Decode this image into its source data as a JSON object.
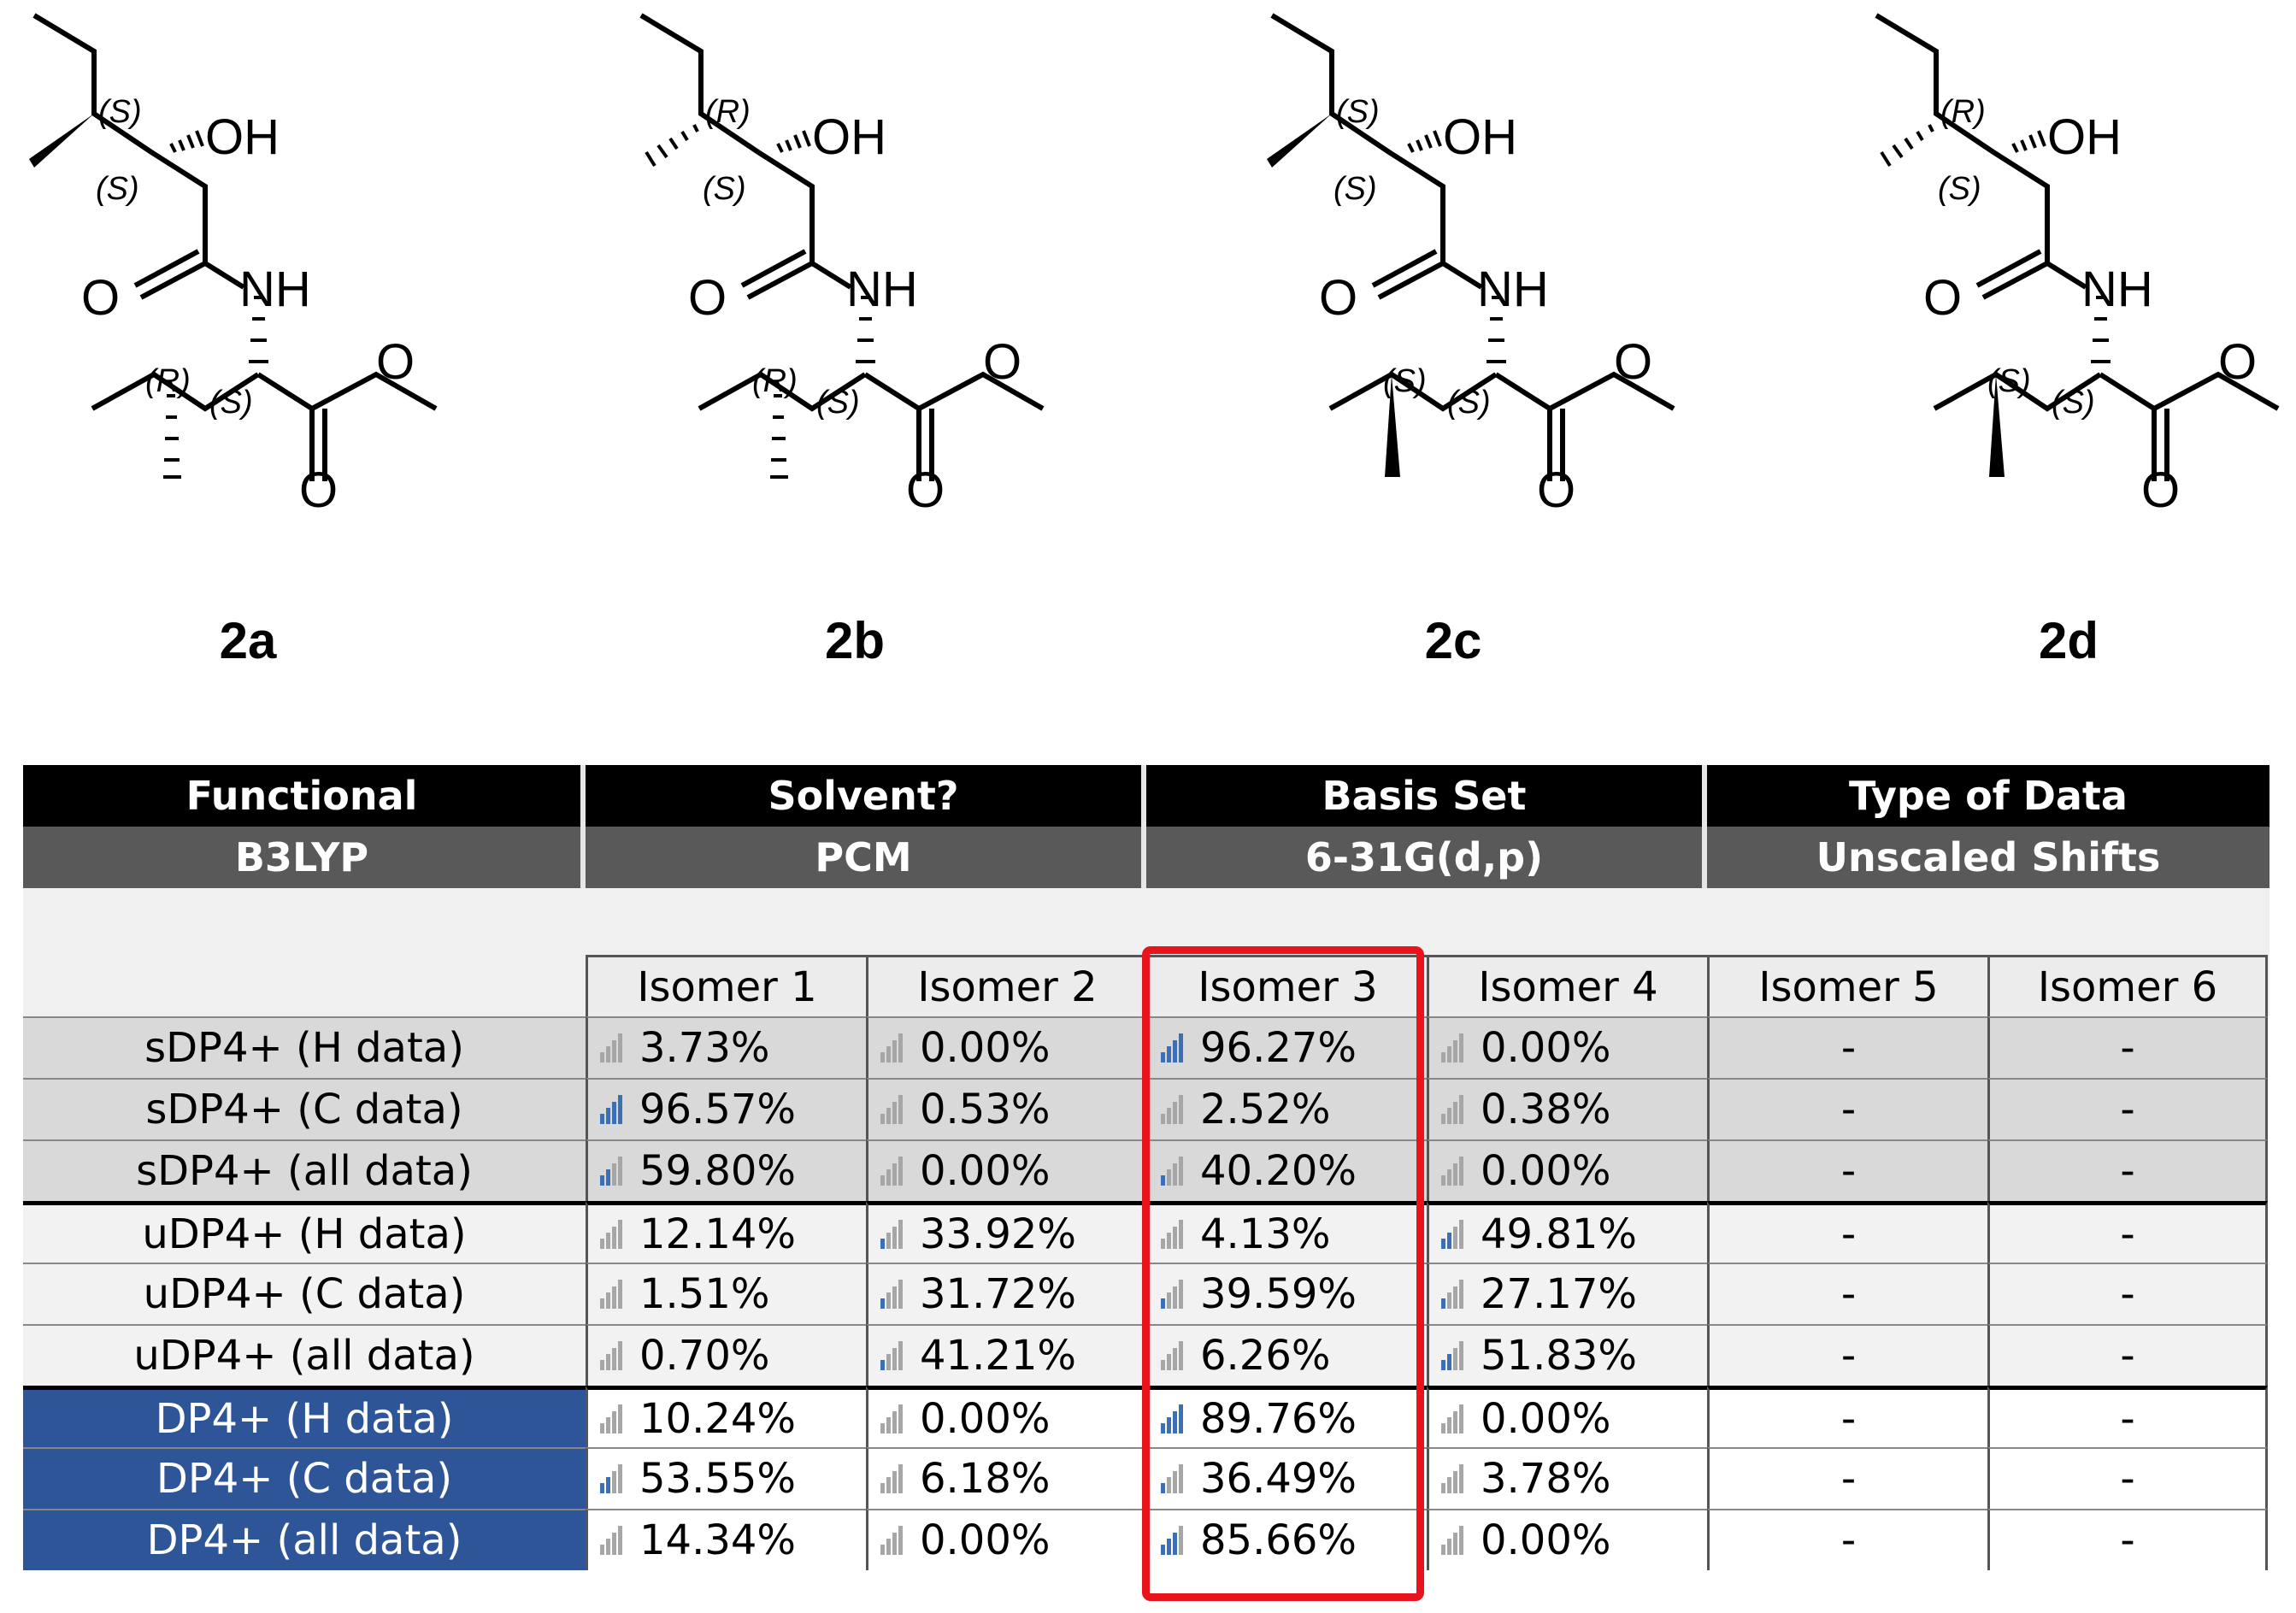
{
  "compounds": [
    {
      "label": "2a",
      "top_configs": [
        "(S)",
        "(S)"
      ],
      "bottom_configs": [
        "(R)",
        "(S)"
      ]
    },
    {
      "label": "2b",
      "top_configs": [
        "(R)",
        "(S)"
      ],
      "bottom_configs": [
        "(R)",
        "(S)"
      ]
    },
    {
      "label": "2c",
      "top_configs": [
        "(S)",
        "(S)"
      ],
      "bottom_configs": [
        "(S)",
        "(S)"
      ]
    },
    {
      "label": "2d",
      "top_configs": [
        "(R)",
        "(S)"
      ],
      "bottom_configs": [
        "(S)",
        "(S)"
      ]
    }
  ],
  "atoms": {
    "oh": "OH",
    "nh": "NH",
    "o": "O"
  },
  "settings": {
    "headers": [
      "Functional",
      "Solvent?",
      "Basis Set",
      "Type of Data"
    ],
    "values": [
      "B3LYP",
      "PCM",
      "6-31G(d,p)",
      "Unscaled Shifts"
    ]
  },
  "isomers": [
    "Isomer 1",
    "Isomer 2",
    "Isomer 3",
    "Isomer 4",
    "Isomer 5",
    "Isomer 6"
  ],
  "rows": [
    {
      "label": "sDP4+ (H data)",
      "group": "s",
      "values": [
        "3.73%",
        "0.00%",
        "96.27%",
        "0.00%",
        "-",
        "-"
      ],
      "bars": [
        0,
        0,
        4,
        0
      ]
    },
    {
      "label": "sDP4+ (C data)",
      "group": "s",
      "values": [
        "96.57%",
        "0.53%",
        "2.52%",
        "0.38%",
        "-",
        "-"
      ],
      "bars": [
        4,
        0,
        0,
        0
      ]
    },
    {
      "label": "sDP4+ (all data)",
      "group": "s",
      "values": [
        "59.80%",
        "0.00%",
        "40.20%",
        "0.00%",
        "-",
        "-"
      ],
      "bars": [
        2,
        0,
        1,
        0
      ]
    },
    {
      "label": "uDP4+ (H data)",
      "group": "u",
      "values": [
        "12.14%",
        "33.92%",
        "4.13%",
        "49.81%",
        "-",
        "-"
      ],
      "bars": [
        0,
        1,
        0,
        2
      ]
    },
    {
      "label": "uDP4+ (C data)",
      "group": "u",
      "values": [
        "1.51%",
        "31.72%",
        "39.59%",
        "27.17%",
        "-",
        "-"
      ],
      "bars": [
        0,
        1,
        1,
        1
      ]
    },
    {
      "label": "uDP4+ (all data)",
      "group": "u",
      "values": [
        "0.70%",
        "41.21%",
        "6.26%",
        "51.83%",
        "-",
        "-"
      ],
      "bars": [
        0,
        1,
        0,
        2
      ]
    },
    {
      "label": "DP4+ (H data)",
      "group": "d",
      "values": [
        "10.24%",
        "0.00%",
        "89.76%",
        "0.00%",
        "-",
        "-"
      ],
      "bars": [
        0,
        0,
        4,
        0
      ]
    },
    {
      "label": "DP4+ (C data)",
      "group": "d",
      "values": [
        "53.55%",
        "6.18%",
        "36.49%",
        "3.78%",
        "-",
        "-"
      ],
      "bars": [
        2,
        0,
        1,
        0
      ]
    },
    {
      "label": "DP4+ (all data)",
      "group": "d",
      "values": [
        "14.34%",
        "0.00%",
        "85.66%",
        "0.00%",
        "-",
        "-"
      ],
      "bars": [
        0,
        0,
        3,
        0
      ]
    }
  ],
  "colors": {
    "header_bg": "#000000",
    "subheader_bg": "#595959",
    "dp4_label_bg": "#2e5597",
    "highlight": "#e8141b",
    "bar_active": "#3d6fb6",
    "bar_inactive": "#a6a6a6"
  }
}
